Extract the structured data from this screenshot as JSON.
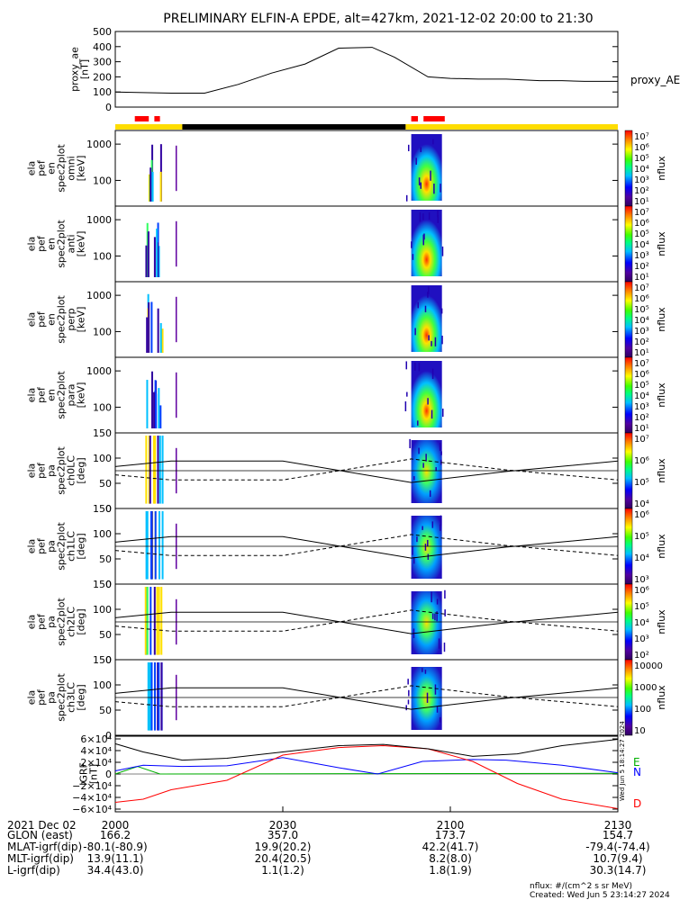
{
  "title": "PRELIMINARY ELFIN-A EPDE, alt=427km, 2021-12-02 20:00 to 21:30",
  "colors": {
    "science_bar": "#ffdd00",
    "sector_marks": "#ff0000",
    "black_bar": "#000000",
    "bx": "#00b000",
    "by": "#0000ff",
    "bz": "#ff0000",
    "btot": "#000000"
  },
  "chart_data": [
    {
      "type": "line",
      "panel": "proxy_ae",
      "ylabel": "proxy_ae\n[nT]",
      "series_label": "proxy_AE",
      "ylim": [
        0,
        500
      ],
      "yticks": [
        "500",
        "400",
        "300",
        "200",
        "100",
        "0"
      ],
      "x_minutes": [
        0,
        10,
        16,
        22,
        28,
        34,
        40,
        46,
        50,
        56,
        60,
        65,
        70,
        76,
        80,
        84,
        90
      ],
      "y": [
        100,
        92,
        92,
        150,
        225,
        285,
        390,
        395,
        330,
        200,
        190,
        185,
        185,
        175,
        175,
        170,
        170
      ]
    },
    {
      "type": "bar",
      "panel": "status_bar",
      "segments": [
        {
          "from_min": 0,
          "to_min": 12,
          "color": "yellow"
        },
        {
          "from_min": 12,
          "to_min": 52,
          "color": "black"
        },
        {
          "from_min": 52,
          "to_min": 90,
          "color": "yellow"
        }
      ],
      "red_marks_min": [
        [
          3.5,
          6.0
        ],
        [
          7.0,
          8.0
        ],
        [
          53.0,
          54.2
        ],
        [
          55.2,
          59.0
        ]
      ]
    },
    {
      "type": "heatmap",
      "panel": "spec2plot_omni",
      "ylabel": "ela\npef\nen\nspec2plot\nomni\n[keV]",
      "yticks": [
        "1000",
        "100"
      ],
      "zlabel": "nflux",
      "zticks": [
        "10⁷",
        "10⁶",
        "10⁵",
        "10⁴",
        "10³",
        "10²",
        "10¹"
      ]
    },
    {
      "type": "heatmap",
      "panel": "spec2plot_anti",
      "ylabel": "ela\npef\nen\nspec2plot\nanti\n[keV]",
      "yticks": [
        "1000",
        "100"
      ],
      "zlabel": "nflux",
      "zticks": [
        "10⁷",
        "10⁶",
        "10⁵",
        "10⁴",
        "10³",
        "10²",
        "10¹"
      ]
    },
    {
      "type": "heatmap",
      "panel": "spec2plot_perp",
      "ylabel": "ela\npef\nen\nspec2plot\nperp\n[keV]",
      "yticks": [
        "1000",
        "100"
      ],
      "zlabel": "nflux",
      "zticks": [
        "10⁷",
        "10⁶",
        "10⁵",
        "10⁴",
        "10³",
        "10²",
        "10¹"
      ]
    },
    {
      "type": "heatmap",
      "panel": "spec2plot_para",
      "ylabel": "ela\npef\nen\nspec2plot\npara\n[keV]",
      "yticks": [
        "1000",
        "100"
      ],
      "zlabel": "nflux",
      "zticks": [
        "10⁷",
        "10⁶",
        "10⁵",
        "10⁴",
        "10³",
        "10²",
        "10¹"
      ]
    },
    {
      "type": "heatmap",
      "panel": "spec2plot_ch0LC",
      "ylabel": "ela\npef\npa\nspec2plot\nch0LC\n[deg]",
      "yticks": [
        "150",
        "100",
        "50",
        "0"
      ],
      "zlabel": "nflux",
      "zticks": [
        "10⁷",
        "10⁶",
        "10⁵",
        "10⁴"
      ]
    },
    {
      "type": "heatmap",
      "panel": "spec2plot_ch1LC",
      "ylabel": "ela\npef\npa\nspec2plot\nch1LC\n[deg]",
      "yticks": [
        "150",
        "100",
        "50",
        "0"
      ],
      "zlabel": "nflux",
      "zticks": [
        "10⁶",
        "10⁵",
        "10⁴",
        "10³"
      ]
    },
    {
      "type": "heatmap",
      "panel": "spec2plot_ch2LC",
      "ylabel": "ela\npef\npa\nspec2plot\nch2LC\n[deg]",
      "yticks": [
        "150",
        "100",
        "50",
        "0"
      ],
      "zlabel": "nflux",
      "zticks": [
        "10⁶",
        "10⁵",
        "10⁴",
        "10³",
        "10²"
      ]
    },
    {
      "type": "heatmap",
      "panel": "spec2plot_ch3LC",
      "ylabel": "ela\npef\npa\nspec2plot\nch3LC\n[deg]",
      "yticks": [
        "150",
        "100",
        "50",
        "0"
      ],
      "zlabel": "nflux",
      "zticks": [
        "10000",
        "1000",
        "100",
        "10"
      ]
    },
    {
      "type": "line",
      "panel": "igrf",
      "ylabel": "IGRF\n[nT]",
      "ylim": [
        -60000,
        60000
      ],
      "yticks": [
        "6×10⁴",
        "4×10⁴",
        "2×10⁴",
        "0",
        "−2×10⁴",
        "−4×10⁴",
        "−6×10⁴"
      ],
      "legend": [
        "E",
        "N",
        "D"
      ],
      "series": [
        {
          "name": "E",
          "color": "#00b000",
          "x_minutes": [
            0,
            4,
            8,
            45,
            90
          ],
          "y": [
            0,
            12000,
            0,
            500,
            1000
          ]
        },
        {
          "name": "N",
          "color": "#0000ff",
          "x_minutes": [
            0,
            5,
            12,
            20,
            30,
            40,
            47,
            55,
            64,
            70,
            80,
            90
          ],
          "y": [
            5000,
            14000,
            12000,
            13000,
            26000,
            10000,
            0,
            20000,
            23000,
            22000,
            14000,
            2000
          ]
        },
        {
          "name": "D",
          "color": "#ff0000",
          "x_minutes": [
            0,
            5,
            10,
            20,
            30,
            40,
            48,
            56,
            64,
            72,
            80,
            90
          ],
          "y": [
            -45000,
            -40000,
            -25000,
            -10000,
            30000,
            42000,
            45000,
            40000,
            20000,
            -15000,
            -40000,
            -55000
          ]
        },
        {
          "name": "B",
          "color": "#000000",
          "x_minutes": [
            0,
            5,
            12,
            20,
            30,
            40,
            48,
            56,
            64,
            72,
            80,
            90
          ],
          "y": [
            48000,
            35000,
            22000,
            25000,
            35000,
            45000,
            47000,
            40000,
            28000,
            32000,
            45000,
            55000
          ]
        }
      ]
    }
  ],
  "xaxis": {
    "ticks": [
      "2000",
      "2030",
      "2100",
      "2130"
    ],
    "ticks_minutes": [
      0,
      30,
      60,
      90
    ],
    "rows": [
      {
        "label": "2021 Dec 02",
        "values": [
          "2000",
          "2030",
          "2100",
          "2130"
        ]
      },
      {
        "label": "GLON (east)",
        "values": [
          "166.2",
          "357.0",
          "173.7",
          "154.7"
        ]
      },
      {
        "label": "MLAT-igrf(dip)",
        "values": [
          "-80.1(-80.9)",
          "19.9(20.2)",
          "42.2(41.7)",
          "-79.4(-74.4)"
        ]
      },
      {
        "label": "MLT-igrf(dip)",
        "values": [
          "13.9(11.1)",
          "20.4(20.5)",
          "8.2(8.0)",
          "10.7(9.4)"
        ]
      },
      {
        "label": "L-igrf(dip)",
        "values": [
          "34.4(43.0)",
          "1.1(1.2)",
          "1.8(1.9)",
          "30.3(14.7)"
        ]
      }
    ]
  },
  "footer": {
    "units": "nflux: #/(cm^2 s sr MeV)",
    "created": "Created: Wed Jun  5 23:14:27 2024",
    "side_stamp": "Wed Jun  5 18:14:27 2024"
  }
}
